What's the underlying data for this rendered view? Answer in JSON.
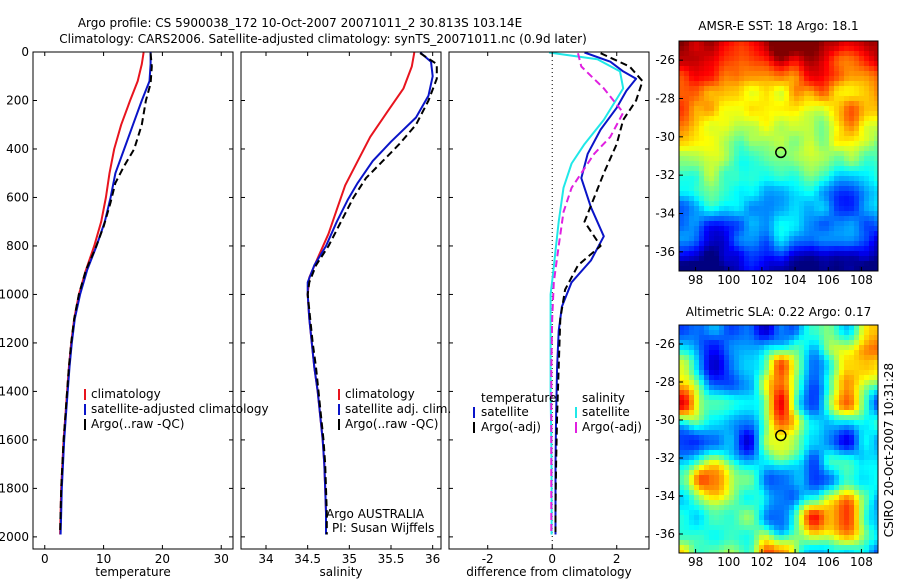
{
  "header": {
    "title_line1": "Argo profile: CS 5900038_172 10-Oct-2007 20071011_2 30.813S 103.14E",
    "title_line2": "Climatology: CARS2006. Satellite-adjusted climatology: synTS_20071011.nc (0.9d later)"
  },
  "side_note": "CSIRO 20-Oct-2007 10:31:28",
  "colors": {
    "climatology": "#e8141e",
    "satellite": "#0a14c8",
    "argo": "#000000",
    "sal_satellite": "#20e8e8",
    "sal_argo": "#e020e0"
  },
  "chart_data": [
    {
      "type": "line",
      "xlabel": "temperature",
      "ylabel": "",
      "xlim": [
        -2,
        32
      ],
      "ylim": [
        2050,
        0
      ],
      "xticks": [
        "0",
        "10",
        "20",
        "30"
      ],
      "yticks": [
        "0",
        "200",
        "400",
        "600",
        "800",
        "1000",
        "1200",
        "1400",
        "1600",
        "1800",
        "2000"
      ],
      "legend": [
        "climatology",
        "satellite-adjusted climatology",
        "Argo(..raw -QC)"
      ],
      "legend_placement": "middle-right",
      "series": [
        {
          "name": "climatology",
          "style": "solid",
          "color": "climatology",
          "points": [
            [
              16.8,
              2
            ],
            [
              16.5,
              50
            ],
            [
              15.8,
              120
            ],
            [
              14.5,
              200
            ],
            [
              13.0,
              300
            ],
            [
              11.8,
              400
            ],
            [
              11.0,
              500
            ],
            [
              10.4,
              600
            ],
            [
              9.6,
              700
            ],
            [
              8.4,
              800
            ],
            [
              7.0,
              900
            ],
            [
              5.8,
              1000
            ],
            [
              5.0,
              1100
            ],
            [
              4.5,
              1200
            ],
            [
              4.1,
              1300
            ],
            [
              3.8,
              1400
            ],
            [
              3.5,
              1500
            ],
            [
              3.2,
              1600
            ],
            [
              3.0,
              1700
            ],
            [
              2.8,
              1800
            ],
            [
              2.7,
              1900
            ],
            [
              2.6,
              1990
            ]
          ]
        },
        {
          "name": "satellite-adjusted climatology",
          "style": "solid",
          "color": "satellite",
          "points": [
            [
              18.0,
              2
            ],
            [
              18.0,
              50
            ],
            [
              17.8,
              120
            ],
            [
              16.5,
              200
            ],
            [
              15.0,
              300
            ],
            [
              13.5,
              400
            ],
            [
              12.0,
              500
            ],
            [
              11.2,
              600
            ],
            [
              10.2,
              700
            ],
            [
              8.8,
              800
            ],
            [
              7.2,
              900
            ],
            [
              6.0,
              1000
            ],
            [
              5.1,
              1100
            ],
            [
              4.6,
              1200
            ],
            [
              4.2,
              1300
            ],
            [
              3.9,
              1400
            ],
            [
              3.6,
              1500
            ],
            [
              3.3,
              1600
            ],
            [
              3.1,
              1700
            ],
            [
              2.9,
              1800
            ],
            [
              2.8,
              1900
            ],
            [
              2.7,
              1990
            ]
          ]
        },
        {
          "name": "Argo(..raw -QC)",
          "style": "dashed",
          "color": "argo",
          "points": [
            [
              18.0,
              5
            ],
            [
              18.2,
              60
            ],
            [
              18.0,
              130
            ],
            [
              17.2,
              200
            ],
            [
              16.5,
              300
            ],
            [
              15.2,
              400
            ],
            [
              13.5,
              470
            ],
            [
              12.0,
              540
            ],
            [
              11.2,
              620
            ],
            [
              10.0,
              720
            ],
            [
              8.6,
              810
            ],
            [
              7.0,
              900
            ],
            [
              5.8,
              1000
            ],
            [
              5.0,
              1100
            ],
            [
              4.5,
              1200
            ],
            [
              4.1,
              1300
            ],
            [
              3.8,
              1400
            ],
            [
              3.5,
              1500
            ],
            [
              3.2,
              1600
            ],
            [
              3.0,
              1700
            ],
            [
              2.8,
              1800
            ],
            [
              2.7,
              1900
            ],
            [
              2.6,
              1980
            ]
          ]
        }
      ]
    },
    {
      "type": "line",
      "xlabel": "salinity",
      "ylabel": "",
      "xlim": [
        33.7,
        36.1
      ],
      "ylim": [
        2050,
        0
      ],
      "xticks": [
        "34",
        "34.5",
        "35",
        "35.5",
        "36"
      ],
      "legend": [
        "climatology",
        "satellite adj. clim.",
        "Argo(..raw -QC)"
      ],
      "legend_placement": "middle-right",
      "annotation_line1": "Argo AUSTRALIA",
      "annotation_line2": "PI: Susan Wijffels",
      "series": [
        {
          "name": "climatology",
          "style": "solid",
          "color": "climatology",
          "points": [
            [
              35.78,
              2
            ],
            [
              35.75,
              60
            ],
            [
              35.65,
              150
            ],
            [
              35.45,
              250
            ],
            [
              35.25,
              350
            ],
            [
              35.1,
              450
            ],
            [
              34.95,
              550
            ],
            [
              34.85,
              650
            ],
            [
              34.75,
              750
            ],
            [
              34.62,
              850
            ],
            [
              34.52,
              930
            ],
            [
              34.5,
              1000
            ],
            [
              34.52,
              1100
            ],
            [
              34.55,
              1200
            ],
            [
              34.58,
              1300
            ],
            [
              34.62,
              1400
            ],
            [
              34.65,
              1500
            ],
            [
              34.68,
              1600
            ],
            [
              34.7,
              1700
            ],
            [
              34.71,
              1800
            ],
            [
              34.72,
              1900
            ],
            [
              34.72,
              1990
            ]
          ]
        },
        {
          "name": "satellite adj. clim.",
          "style": "solid",
          "color": "satellite",
          "points": [
            [
              35.85,
              2
            ],
            [
              35.98,
              40
            ],
            [
              36.0,
              100
            ],
            [
              35.95,
              180
            ],
            [
              35.8,
              270
            ],
            [
              35.5,
              370
            ],
            [
              35.28,
              450
            ],
            [
              35.1,
              540
            ],
            [
              34.98,
              610
            ],
            [
              34.85,
              700
            ],
            [
              34.72,
              800
            ],
            [
              34.58,
              880
            ],
            [
              34.5,
              950
            ],
            [
              34.5,
              1000
            ],
            [
              34.52,
              1100
            ],
            [
              34.55,
              1200
            ],
            [
              34.58,
              1300
            ],
            [
              34.62,
              1400
            ],
            [
              34.65,
              1500
            ],
            [
              34.68,
              1600
            ],
            [
              34.7,
              1700
            ],
            [
              34.71,
              1800
            ],
            [
              34.72,
              1900
            ],
            [
              34.72,
              1990
            ]
          ]
        },
        {
          "name": "Argo(..raw -QC)",
          "style": "dashed",
          "color": "argo",
          "points": [
            [
              35.85,
              5
            ],
            [
              36.05,
              50
            ],
            [
              36.05,
              110
            ],
            [
              35.95,
              200
            ],
            [
              35.8,
              300
            ],
            [
              35.6,
              380
            ],
            [
              35.4,
              450
            ],
            [
              35.2,
              520
            ],
            [
              35.05,
              600
            ],
            [
              34.9,
              700
            ],
            [
              34.75,
              800
            ],
            [
              34.6,
              880
            ],
            [
              34.52,
              950
            ],
            [
              34.5,
              1000
            ],
            [
              34.53,
              1100
            ],
            [
              34.56,
              1200
            ],
            [
              34.6,
              1300
            ],
            [
              34.63,
              1400
            ],
            [
              34.66,
              1500
            ],
            [
              34.69,
              1600
            ],
            [
              34.71,
              1700
            ],
            [
              34.72,
              1800
            ],
            [
              34.73,
              1900
            ],
            [
              34.73,
              1990
            ]
          ]
        }
      ]
    },
    {
      "type": "line",
      "xlabel": "difference from climatology",
      "ylabel": "",
      "xlim": [
        -3.2,
        3.0
      ],
      "ylim": [
        2050,
        0
      ],
      "xticks": [
        "-2",
        "0",
        "2"
      ],
      "zero_line": "dotted",
      "legend_left_title": "temperature",
      "legend_right_title": "salinity",
      "legend_left": [
        "satellite",
        "Argo(-adj)"
      ],
      "legend_right": [
        "satellite",
        "Argo(-adj)"
      ],
      "series": [
        {
          "name": "satellite",
          "group": "temperature",
          "style": "solid",
          "color": "satellite",
          "points": [
            [
              1.0,
              2
            ],
            [
              1.8,
              40
            ],
            [
              2.2,
              80
            ],
            [
              2.6,
              110
            ],
            [
              2.3,
              160
            ],
            [
              2.0,
              230
            ],
            [
              1.5,
              320
            ],
            [
              1.1,
              420
            ],
            [
              0.9,
              520
            ],
            [
              1.2,
              640
            ],
            [
              1.6,
              760
            ],
            [
              1.2,
              860
            ],
            [
              0.6,
              950
            ],
            [
              0.3,
              1050
            ],
            [
              0.2,
              1150
            ],
            [
              0.15,
              1300
            ],
            [
              0.12,
              1500
            ],
            [
              0.1,
              1700
            ],
            [
              0.1,
              1900
            ],
            [
              0.1,
              1990
            ]
          ]
        },
        {
          "name": "Argo(-adj)",
          "group": "temperature",
          "style": "dashed",
          "color": "argo",
          "points": [
            [
              1.5,
              5
            ],
            [
              2.4,
              60
            ],
            [
              2.8,
              120
            ],
            [
              2.6,
              200
            ],
            [
              2.2,
              280
            ],
            [
              2.0,
              380
            ],
            [
              1.6,
              500
            ],
            [
              1.3,
              600
            ],
            [
              1.0,
              700
            ],
            [
              1.5,
              800
            ],
            [
              0.8,
              880
            ],
            [
              0.4,
              980
            ],
            [
              0.25,
              1100
            ],
            [
              0.2,
              1300
            ],
            [
              0.15,
              1500
            ],
            [
              0.12,
              1700
            ],
            [
              0.1,
              1900
            ],
            [
              0.1,
              1980
            ]
          ]
        },
        {
          "name": "satellite",
          "group": "salinity",
          "style": "solid",
          "color": "sal_satellite",
          "points": [
            [
              -0.1,
              2
            ],
            [
              1.4,
              30
            ],
            [
              2.1,
              80
            ],
            [
              2.2,
              150
            ],
            [
              1.6,
              280
            ],
            [
              1.0,
              380
            ],
            [
              0.6,
              460
            ],
            [
              0.35,
              560
            ],
            [
              0.2,
              700
            ],
            [
              0.1,
              820
            ],
            [
              0.02,
              920
            ],
            [
              -0.05,
              1000
            ],
            [
              -0.05,
              1200
            ],
            [
              -0.05,
              1400
            ],
            [
              -0.03,
              1600
            ],
            [
              -0.02,
              1800
            ],
            [
              -0.02,
              1990
            ]
          ]
        },
        {
          "name": "Argo(-adj)",
          "group": "salinity",
          "style": "dashed",
          "color": "sal_argo",
          "points": [
            [
              0.8,
              5
            ],
            [
              0.9,
              60
            ],
            [
              1.6,
              150
            ],
            [
              2.2,
              250
            ],
            [
              1.8,
              350
            ],
            [
              1.3,
              420
            ],
            [
              0.9,
              500
            ],
            [
              0.6,
              560
            ],
            [
              0.35,
              660
            ],
            [
              0.2,
              800
            ],
            [
              0.05,
              950
            ],
            [
              0.0,
              1100
            ],
            [
              -0.03,
              1300
            ],
            [
              -0.03,
              1500
            ],
            [
              -0.03,
              1700
            ],
            [
              -0.03,
              1900
            ],
            [
              -0.03,
              1980
            ]
          ]
        }
      ]
    },
    {
      "type": "heatmap",
      "title": "AMSR-E SST: 18 Argo: 18.1",
      "xlim": [
        97,
        109
      ],
      "ylim": [
        -37,
        -25
      ],
      "xticks": [
        "98",
        "100",
        "102",
        "104",
        "106",
        "108"
      ],
      "yticks": [
        "-26",
        "-28",
        "-30",
        "-32",
        "-34",
        "-36"
      ],
      "marker": [
        103.14,
        -30.813
      ]
    },
    {
      "type": "heatmap",
      "title": "Altimetric SLA: 0.22 Argo: 0.17",
      "xlim": [
        97,
        109
      ],
      "ylim": [
        -37,
        -25
      ],
      "xticks": [
        "98",
        "100",
        "102",
        "104",
        "106",
        "108"
      ],
      "yticks": [
        "-26",
        "-28",
        "-30",
        "-32",
        "-34",
        "-36"
      ],
      "marker": [
        103.14,
        -30.813
      ]
    }
  ]
}
